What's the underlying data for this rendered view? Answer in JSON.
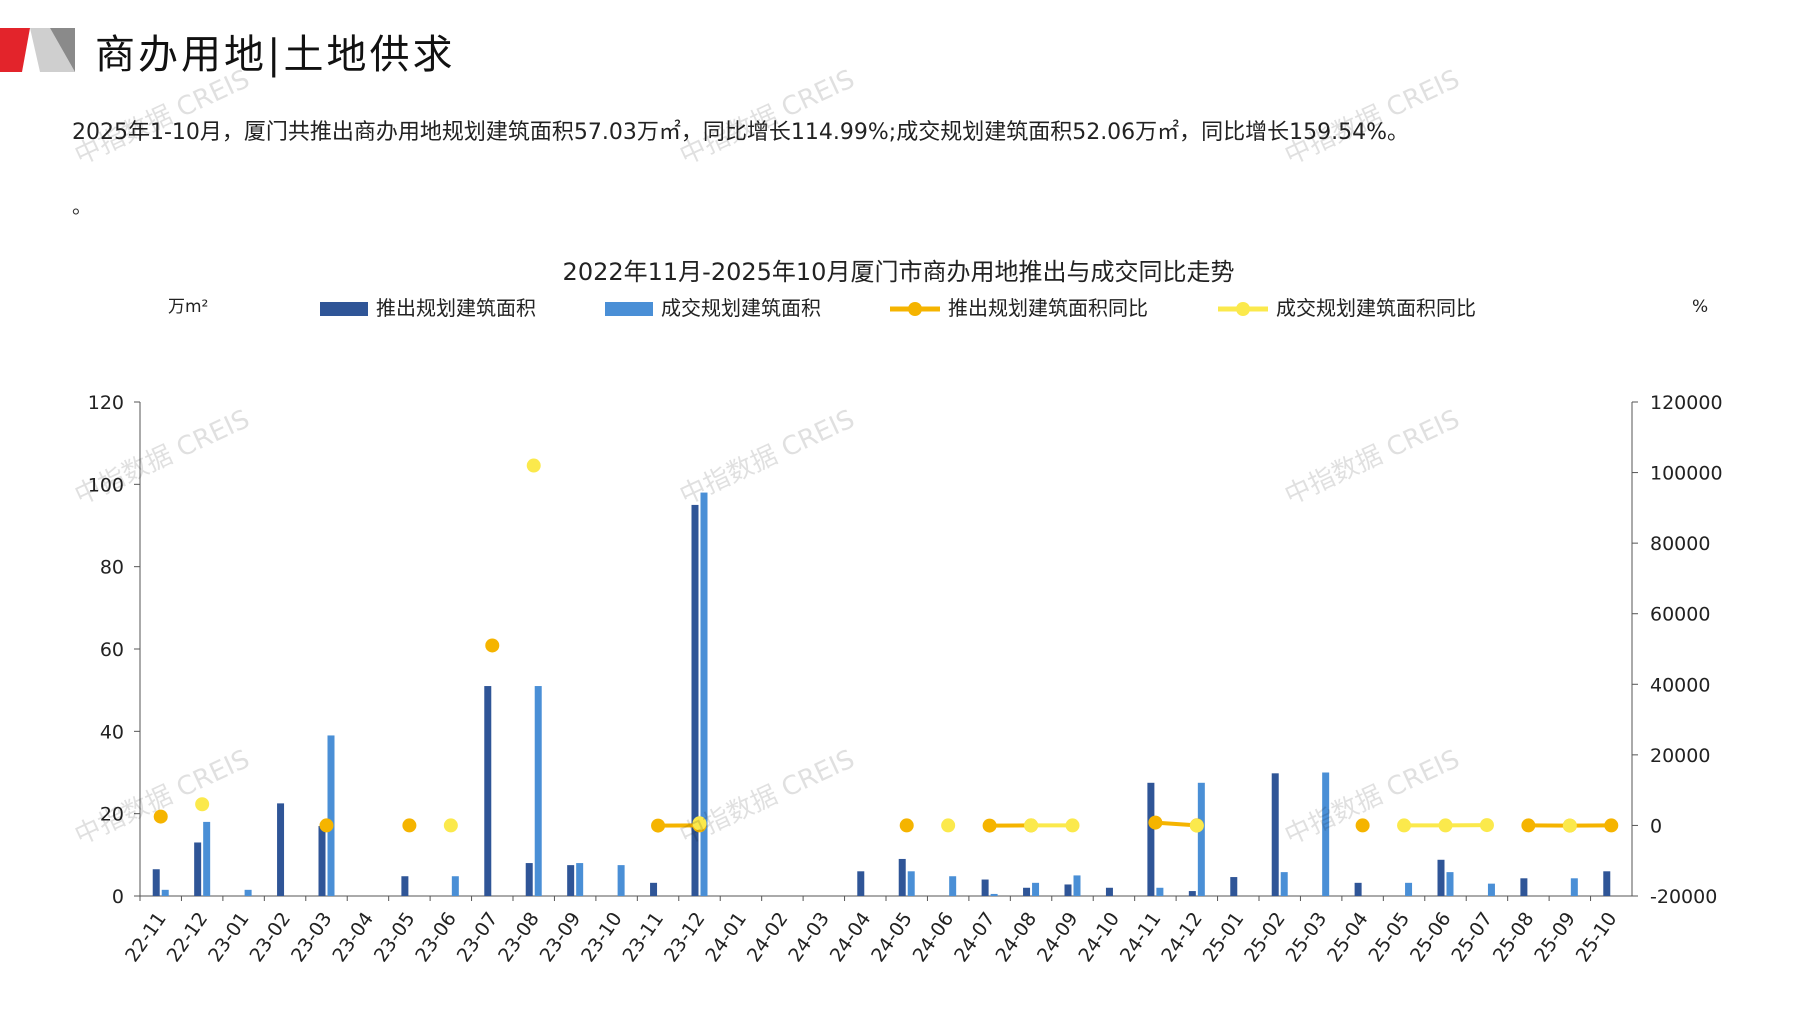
{
  "page": {
    "title": "商办用地|土地供求",
    "summary": "2025年1-10月，厦门共推出商办用地规划建筑面积57.03万㎡，同比增长114.99%;成交规划建筑面积52.06万㎡，同比增长159.54%。",
    "summary_tail": "。",
    "watermark": "中指数据 CREIS"
  },
  "colors": {
    "brand_red": "#e3242b",
    "launch_bar": "#2f5597",
    "deal_bar": "#4a8fd6",
    "launch_yoy": "#f5b400",
    "deal_yoy": "#fbe94c"
  },
  "chart_data": {
    "type": "bar",
    "title": "2022年11月-2025年10月厦门市商办用地推出与成交同比走势",
    "ylabel_left": "万m²",
    "ylabel_right": "%",
    "ylim_left": [
      0,
      120
    ],
    "ylim_right": [
      -20000,
      120000
    ],
    "yticks_left": [
      "0",
      "20",
      "40",
      "60",
      "80",
      "100",
      "120"
    ],
    "yticks_right": [
      "-20000",
      "0",
      "20000",
      "40000",
      "60000",
      "80000",
      "100000",
      "120000"
    ],
    "legend_position": "top",
    "categories": [
      "22-11",
      "22-12",
      "23-01",
      "23-02",
      "23-03",
      "23-04",
      "23-05",
      "23-06",
      "23-07",
      "23-08",
      "23-09",
      "23-10",
      "23-11",
      "23-12",
      "24-01",
      "24-02",
      "24-03",
      "24-04",
      "24-05",
      "24-06",
      "24-07",
      "24-08",
      "24-09",
      "24-10",
      "24-11",
      "24-12",
      "25-01",
      "25-02",
      "25-03",
      "25-04",
      "25-05",
      "25-06",
      "25-07",
      "25-08",
      "25-09",
      "25-10"
    ],
    "series": [
      {
        "name": "推出规划建筑面积",
        "kind": "bar",
        "axis": "left",
        "values": [
          6.5,
          13,
          0,
          22.5,
          17,
          0,
          4.8,
          0,
          51,
          8,
          7.5,
          0,
          3.2,
          95,
          0,
          0,
          0,
          6,
          9,
          0,
          4,
          2,
          2.8,
          2,
          27.5,
          1.2,
          4.6,
          29.8,
          0,
          3.2,
          0,
          8.8,
          0,
          4.3,
          0,
          6
        ]
      },
      {
        "name": "成交规划建筑面积",
        "kind": "bar",
        "axis": "left",
        "values": [
          1.5,
          18,
          1.5,
          0,
          39,
          0,
          0,
          4.8,
          0,
          51,
          8,
          7.5,
          0,
          98,
          0,
          0,
          0,
          0,
          6,
          4.8,
          0.5,
          3.2,
          5,
          0,
          2,
          27.5,
          0,
          5.8,
          30,
          0,
          3.2,
          5.8,
          3,
          0,
          4.3,
          0
        ]
      },
      {
        "name": "推出规划建筑面积同比",
        "kind": "line",
        "axis": "right",
        "values": [
          2500,
          null,
          null,
          null,
          0,
          null,
          0,
          null,
          51000,
          null,
          null,
          null,
          -50,
          0,
          null,
          null,
          null,
          null,
          0,
          null,
          -50,
          0,
          null,
          null,
          800,
          0,
          null,
          null,
          null,
          0,
          null,
          null,
          null,
          0,
          -50,
          0
        ]
      },
      {
        "name": "成交规划建筑面积同比",
        "kind": "line",
        "axis": "right",
        "values": [
          null,
          6000,
          null,
          null,
          null,
          null,
          null,
          0,
          null,
          102000,
          null,
          null,
          null,
          600,
          null,
          null,
          null,
          null,
          null,
          0,
          null,
          0,
          0,
          null,
          null,
          -50,
          null,
          null,
          null,
          null,
          0,
          0,
          100,
          null,
          -50,
          null
        ]
      }
    ]
  }
}
